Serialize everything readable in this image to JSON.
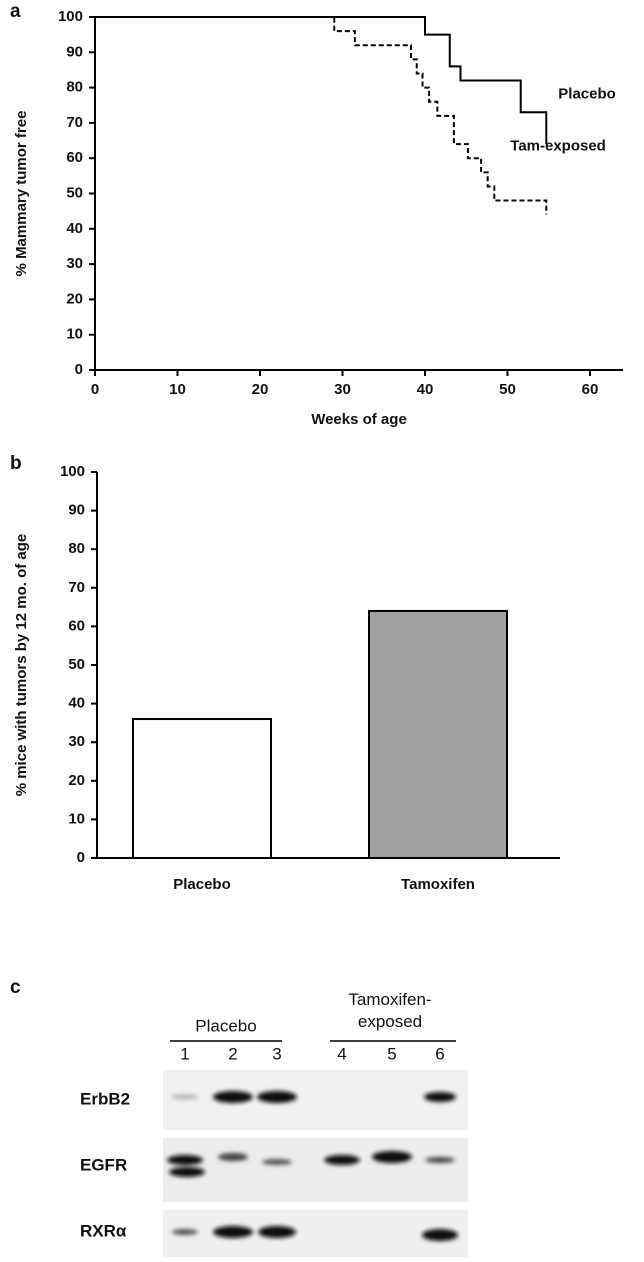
{
  "panel_labels": [
    "a",
    "b",
    "c"
  ],
  "chart_data": [
    {
      "type": "step",
      "xlabel": "Weeks of age",
      "ylabel": "% Mammary tumor free",
      "xlim": [
        0,
        64
      ],
      "xticks": [
        0,
        10,
        20,
        30,
        40,
        50,
        60
      ],
      "ylim": [
        0,
        100
      ],
      "yticks": [
        0,
        10,
        20,
        30,
        40,
        50,
        60,
        70,
        80,
        90,
        100
      ],
      "series": [
        {
          "name": "Placebo",
          "color": "#000000",
          "style": "solid",
          "x": [
            0,
            40,
            43,
            44.3,
            51.6,
            54.7
          ],
          "values": [
            100,
            95,
            86,
            82,
            73,
            64
          ]
        },
        {
          "name": "Tam-exposed",
          "color": "#000000",
          "style": "dashed",
          "x": [
            0,
            29,
            31.5,
            38.3,
            39,
            39.7,
            40.5,
            41.5,
            43.5,
            45.2,
            46.8,
            47.6,
            48.4,
            54.7
          ],
          "values": [
            100,
            96,
            92,
            88,
            84,
            80,
            76,
            72,
            64,
            60,
            56,
            52,
            48,
            44
          ]
        }
      ]
    },
    {
      "type": "bar",
      "ylabel": "% mice with tumors by 12 mo. of age",
      "ylim": [
        0,
        100
      ],
      "yticks": [
        0,
        10,
        20,
        30,
        40,
        50,
        60,
        70,
        80,
        90,
        100
      ],
      "categories": [
        "Placebo",
        "Tamoxifen"
      ],
      "values": [
        36,
        64
      ],
      "colors": [
        "#ffffff",
        "#a0a0a0"
      ]
    }
  ],
  "blot": {
    "groups": [
      "Placebo",
      "Tamoxifen-\nexposed"
    ],
    "lanes": [
      "1",
      "2",
      "3",
      "4",
      "5",
      "6"
    ],
    "rows": [
      "ErbB2",
      "EGFR",
      "RXRα"
    ]
  }
}
